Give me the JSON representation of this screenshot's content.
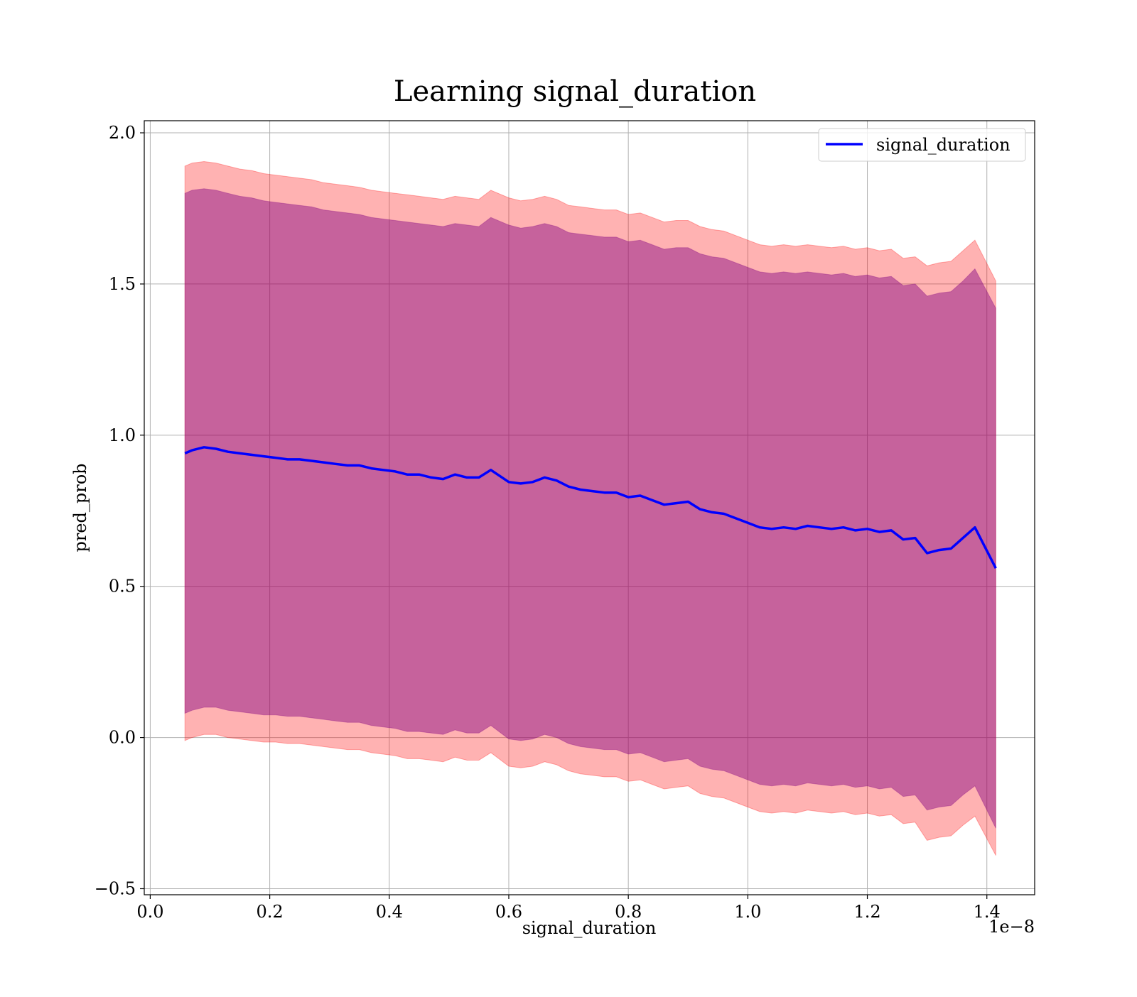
{
  "chart_data": {
    "type": "line",
    "title": "Learning signal_duration",
    "xlabel": "signal_duration",
    "ylabel": "pred_prob",
    "x_offset_text": "1e−8",
    "xlim": [
      -0.01,
      1.48
    ],
    "ylim": [
      -0.52,
      2.04
    ],
    "x_ticks": [
      0.0,
      0.2,
      0.4,
      0.6,
      0.8,
      1.0,
      1.2,
      1.4
    ],
    "x_tick_labels": [
      "0.0",
      "0.2",
      "0.4",
      "0.6",
      "0.8",
      "1.0",
      "1.2",
      "1.4"
    ],
    "y_ticks": [
      -0.5,
      0.0,
      0.5,
      1.0,
      1.5,
      2.0
    ],
    "y_tick_labels": [
      "−0.5",
      "0.0",
      "0.5",
      "1.0",
      "1.5",
      "2.0"
    ],
    "grid": true,
    "legend_position": "top-right",
    "colors": {
      "line": "#0000ff",
      "band_inner": "#800080",
      "band_outer": "#ff0000",
      "grid": "#b0b0b0"
    },
    "series": [
      {
        "name": "signal_duration",
        "x": [
          0.058,
          0.07,
          0.09,
          0.11,
          0.13,
          0.15,
          0.17,
          0.19,
          0.21,
          0.23,
          0.25,
          0.27,
          0.29,
          0.31,
          0.33,
          0.35,
          0.37,
          0.39,
          0.41,
          0.43,
          0.45,
          0.47,
          0.49,
          0.51,
          0.53,
          0.55,
          0.57,
          0.6,
          0.62,
          0.64,
          0.66,
          0.68,
          0.7,
          0.72,
          0.74,
          0.76,
          0.78,
          0.8,
          0.82,
          0.84,
          0.86,
          0.88,
          0.9,
          0.92,
          0.94,
          0.96,
          0.98,
          1.0,
          1.02,
          1.04,
          1.06,
          1.08,
          1.1,
          1.12,
          1.14,
          1.16,
          1.18,
          1.2,
          1.22,
          1.24,
          1.26,
          1.28,
          1.3,
          1.32,
          1.34,
          1.36,
          1.38,
          1.415
        ],
        "y": [
          0.94,
          0.95,
          0.96,
          0.955,
          0.945,
          0.94,
          0.935,
          0.93,
          0.925,
          0.92,
          0.92,
          0.915,
          0.91,
          0.905,
          0.9,
          0.9,
          0.89,
          0.885,
          0.88,
          0.87,
          0.87,
          0.86,
          0.855,
          0.87,
          0.86,
          0.86,
          0.885,
          0.845,
          0.84,
          0.845,
          0.86,
          0.85,
          0.83,
          0.82,
          0.815,
          0.81,
          0.81,
          0.795,
          0.8,
          0.785,
          0.77,
          0.775,
          0.78,
          0.755,
          0.745,
          0.74,
          0.725,
          0.71,
          0.695,
          0.69,
          0.695,
          0.69,
          0.7,
          0.695,
          0.69,
          0.695,
          0.685,
          0.69,
          0.68,
          0.685,
          0.655,
          0.66,
          0.61,
          0.62,
          0.625,
          0.66,
          0.695,
          0.56
        ],
        "band_inner": {
          "upper": [
            1.8,
            1.81,
            1.815,
            1.81,
            1.8,
            1.79,
            1.785,
            1.775,
            1.77,
            1.765,
            1.76,
            1.755,
            1.745,
            1.74,
            1.735,
            1.73,
            1.72,
            1.715,
            1.71,
            1.705,
            1.7,
            1.695,
            1.69,
            1.7,
            1.695,
            1.69,
            1.72,
            1.695,
            1.685,
            1.69,
            1.7,
            1.69,
            1.67,
            1.665,
            1.66,
            1.655,
            1.655,
            1.64,
            1.645,
            1.63,
            1.615,
            1.62,
            1.62,
            1.6,
            1.59,
            1.585,
            1.57,
            1.555,
            1.54,
            1.535,
            1.54,
            1.535,
            1.54,
            1.535,
            1.53,
            1.535,
            1.525,
            1.53,
            1.52,
            1.525,
            1.495,
            1.5,
            1.46,
            1.47,
            1.475,
            1.51,
            1.55,
            1.42
          ],
          "lower": [
            0.08,
            0.09,
            0.1,
            0.1,
            0.09,
            0.085,
            0.08,
            0.075,
            0.075,
            0.07,
            0.07,
            0.065,
            0.06,
            0.055,
            0.05,
            0.05,
            0.04,
            0.035,
            0.03,
            0.02,
            0.02,
            0.015,
            0.01,
            0.025,
            0.015,
            0.015,
            0.04,
            -0.005,
            -0.01,
            -0.005,
            0.01,
            0.0,
            -0.02,
            -0.03,
            -0.035,
            -0.04,
            -0.04,
            -0.055,
            -0.05,
            -0.065,
            -0.08,
            -0.075,
            -0.07,
            -0.095,
            -0.105,
            -0.11,
            -0.125,
            -0.14,
            -0.155,
            -0.16,
            -0.155,
            -0.16,
            -0.15,
            -0.155,
            -0.16,
            -0.155,
            -0.165,
            -0.16,
            -0.17,
            -0.165,
            -0.195,
            -0.19,
            -0.24,
            -0.23,
            -0.225,
            -0.19,
            -0.16,
            -0.3
          ]
        },
        "band_outer": {
          "upper": [
            1.89,
            1.9,
            1.905,
            1.9,
            1.89,
            1.88,
            1.875,
            1.865,
            1.86,
            1.855,
            1.85,
            1.845,
            1.835,
            1.83,
            1.825,
            1.82,
            1.81,
            1.805,
            1.8,
            1.795,
            1.79,
            1.785,
            1.78,
            1.79,
            1.785,
            1.78,
            1.81,
            1.785,
            1.775,
            1.78,
            1.79,
            1.78,
            1.76,
            1.755,
            1.75,
            1.745,
            1.745,
            1.73,
            1.735,
            1.72,
            1.705,
            1.71,
            1.71,
            1.69,
            1.68,
            1.675,
            1.66,
            1.645,
            1.63,
            1.625,
            1.63,
            1.625,
            1.63,
            1.625,
            1.62,
            1.625,
            1.615,
            1.62,
            1.61,
            1.615,
            1.585,
            1.59,
            1.56,
            1.57,
            1.575,
            1.61,
            1.645,
            1.51
          ],
          "lower": [
            -0.01,
            0.0,
            0.01,
            0.01,
            0.0,
            -0.005,
            -0.01,
            -0.015,
            -0.015,
            -0.02,
            -0.02,
            -0.025,
            -0.03,
            -0.035,
            -0.04,
            -0.04,
            -0.05,
            -0.055,
            -0.06,
            -0.07,
            -0.07,
            -0.075,
            -0.08,
            -0.065,
            -0.075,
            -0.075,
            -0.05,
            -0.095,
            -0.1,
            -0.095,
            -0.08,
            -0.09,
            -0.11,
            -0.12,
            -0.125,
            -0.13,
            -0.13,
            -0.145,
            -0.14,
            -0.155,
            -0.17,
            -0.165,
            -0.16,
            -0.185,
            -0.195,
            -0.2,
            -0.215,
            -0.23,
            -0.245,
            -0.25,
            -0.245,
            -0.25,
            -0.24,
            -0.245,
            -0.25,
            -0.245,
            -0.255,
            -0.25,
            -0.26,
            -0.255,
            -0.285,
            -0.28,
            -0.34,
            -0.33,
            -0.325,
            -0.29,
            -0.26,
            -0.39
          ]
        }
      }
    ]
  }
}
